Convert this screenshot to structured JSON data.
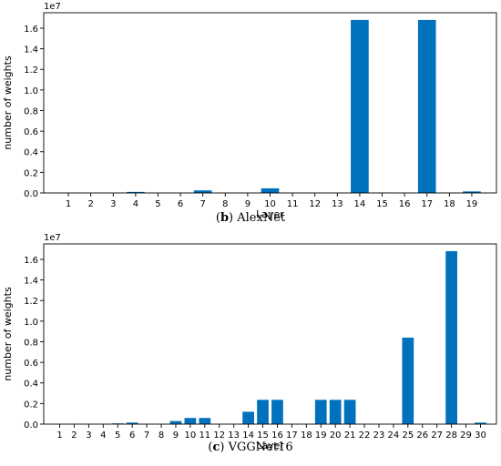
{
  "chart_data": [
    {
      "type": "bar",
      "caption_letter": "b",
      "caption_text": "AlexNet",
      "xlabel": "Layer",
      "ylabel": "number of weights",
      "offset_label": "1e7",
      "ylim": [
        0,
        1.75
      ],
      "yticks": [
        "0.0",
        "0.2",
        "0.4",
        "0.6",
        "0.8",
        "1.0",
        "1.2",
        "1.4",
        "1.6"
      ],
      "categories": [
        "1",
        "2",
        "3",
        "4",
        "5",
        "6",
        "7",
        "8",
        "9",
        "10",
        "11",
        "12",
        "13",
        "14",
        "15",
        "16",
        "17",
        "18",
        "19"
      ],
      "values": [
        0.0,
        0.0,
        0.0,
        0.01,
        0.0,
        0.0,
        0.025,
        0.0,
        0.0,
        0.045,
        0.0,
        0.0,
        0.0,
        1.68,
        0.002,
        0.0,
        1.68,
        0.002,
        0.015
      ],
      "color": "#0072bd",
      "grid": false
    },
    {
      "type": "bar",
      "caption_letter": "c",
      "caption_text": "VGGNet16",
      "xlabel": "Layer",
      "ylabel": "number of weights",
      "offset_label": "1e7",
      "ylim": [
        0,
        1.75
      ],
      "yticks": [
        "0.0",
        "0.2",
        "0.4",
        "0.6",
        "0.8",
        "1.0",
        "1.2",
        "1.4",
        "1.6"
      ],
      "categories": [
        "1",
        "2",
        "3",
        "4",
        "5",
        "6",
        "7",
        "8",
        "9",
        "10",
        "11",
        "12",
        "13",
        "14",
        "15",
        "16",
        "17",
        "18",
        "19",
        "20",
        "21",
        "22",
        "23",
        "24",
        "25",
        "26",
        "27",
        "28",
        "29",
        "30"
      ],
      "values": [
        0.0,
        0.004,
        0.0,
        0.0,
        0.007,
        0.015,
        0.0,
        0.0,
        0.03,
        0.06,
        0.06,
        0.0,
        0.0,
        0.12,
        0.236,
        0.236,
        0.0,
        0.0,
        0.236,
        0.236,
        0.236,
        0.0,
        0.0,
        0.0,
        0.84,
        0.0,
        0.0,
        1.68,
        0.0,
        0.015
      ],
      "color": "#0072bd",
      "grid": false
    }
  ]
}
